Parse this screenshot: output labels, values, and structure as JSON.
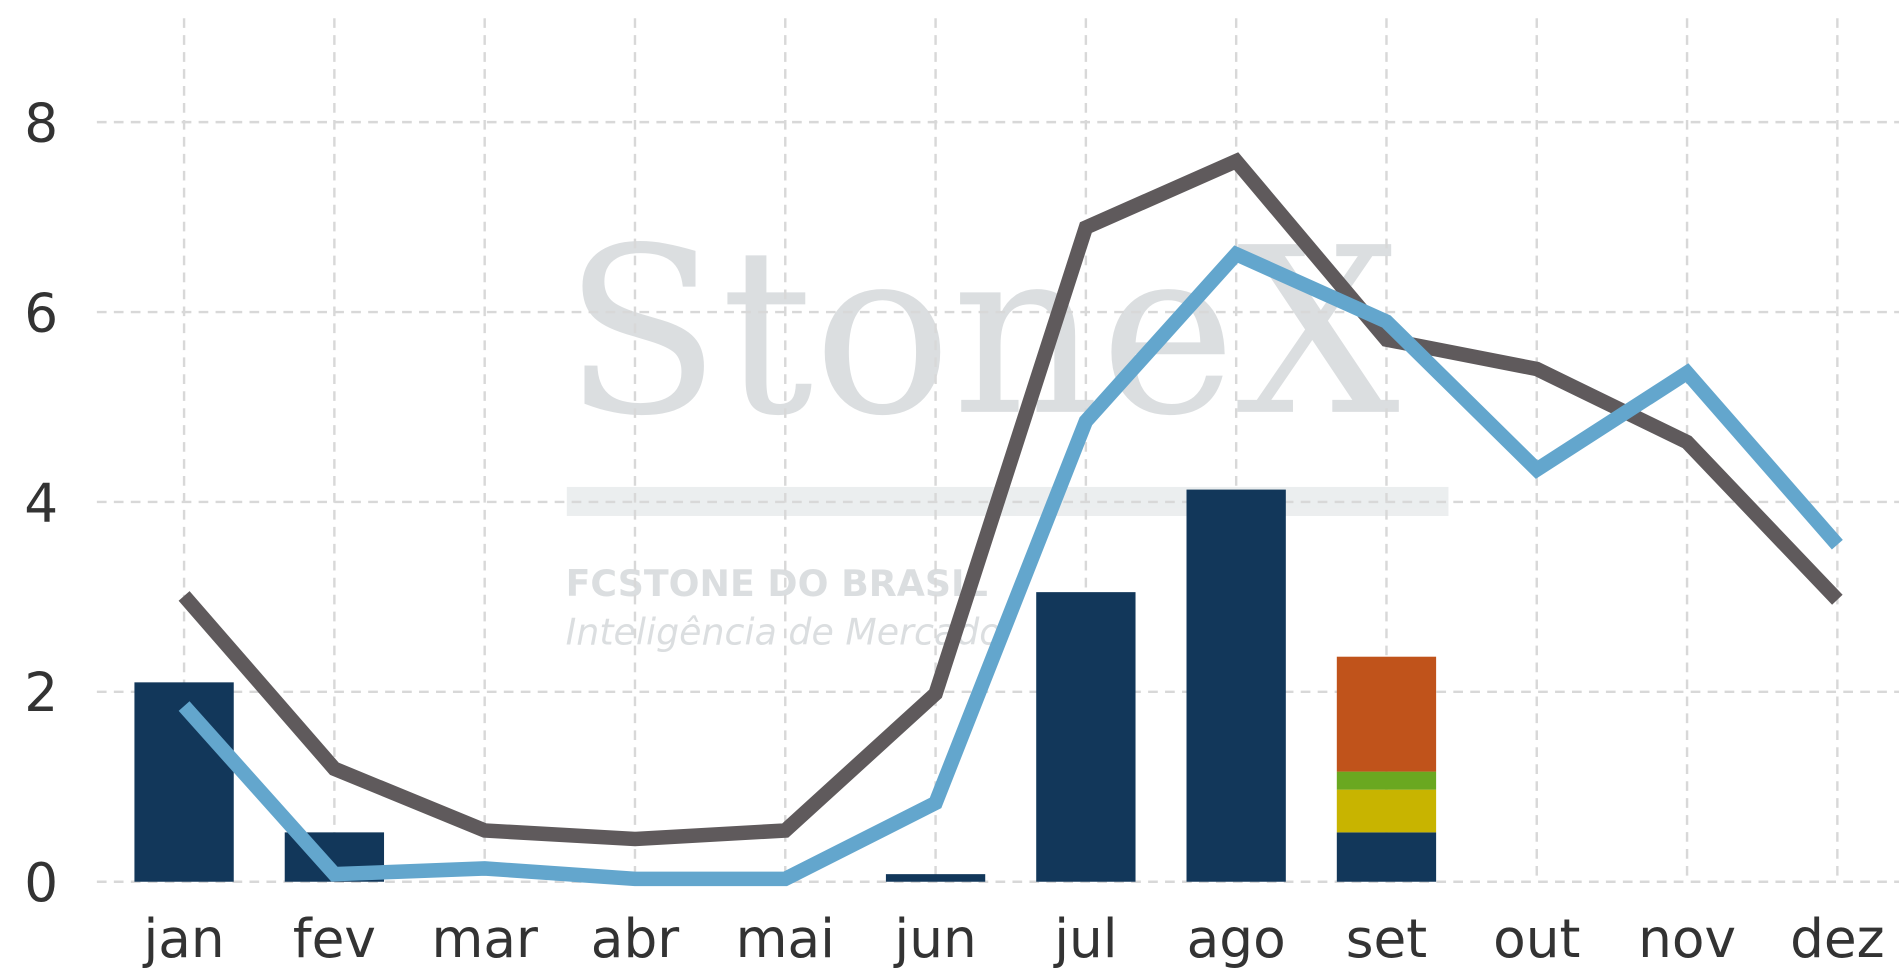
{
  "chart_data": {
    "type": "combo",
    "watermark": {
      "logo": "StoneX",
      "company": "FCSTONE DO BRASIL",
      "tagline": "Inteligência de Mercado"
    },
    "categories": [
      "jan",
      "fev",
      "mar",
      "abr",
      "mai",
      "jun",
      "jul",
      "ago",
      "set",
      "out",
      "nov",
      "dez"
    ],
    "ylim": [
      0,
      9
    ],
    "yticks": [
      0,
      2,
      4,
      6,
      8
    ],
    "grid": true,
    "series": [
      {
        "type": "bar",
        "color": "#12375a",
        "values": [
          2.1,
          0.52,
          0,
          0,
          0,
          0.08,
          3.05,
          4.13,
          0.52,
          null,
          null,
          null
        ]
      },
      {
        "type": "bar",
        "color": "#c8b400",
        "values": [
          null,
          null,
          null,
          null,
          null,
          null,
          null,
          null,
          0.45,
          null,
          null,
          null
        ]
      },
      {
        "type": "bar",
        "color": "#6aa820",
        "values": [
          null,
          null,
          null,
          null,
          null,
          null,
          null,
          null,
          0.19,
          null,
          null,
          null
        ]
      },
      {
        "type": "bar",
        "color": "#c0531b",
        "values": [
          null,
          null,
          null,
          null,
          null,
          null,
          null,
          null,
          1.21,
          null,
          null,
          null
        ]
      },
      {
        "type": "line",
        "color": "#5f5a5c",
        "values": [
          3.01,
          1.19,
          0.54,
          0.45,
          0.54,
          1.98,
          6.89,
          7.59,
          5.71,
          5.4,
          4.63,
          2.97
        ]
      },
      {
        "type": "line",
        "color": "#63a6cd",
        "values": [
          1.85,
          0.08,
          0.14,
          0.03,
          0.03,
          0.83,
          4.85,
          6.61,
          5.9,
          4.34,
          5.36,
          3.55
        ]
      }
    ]
  }
}
